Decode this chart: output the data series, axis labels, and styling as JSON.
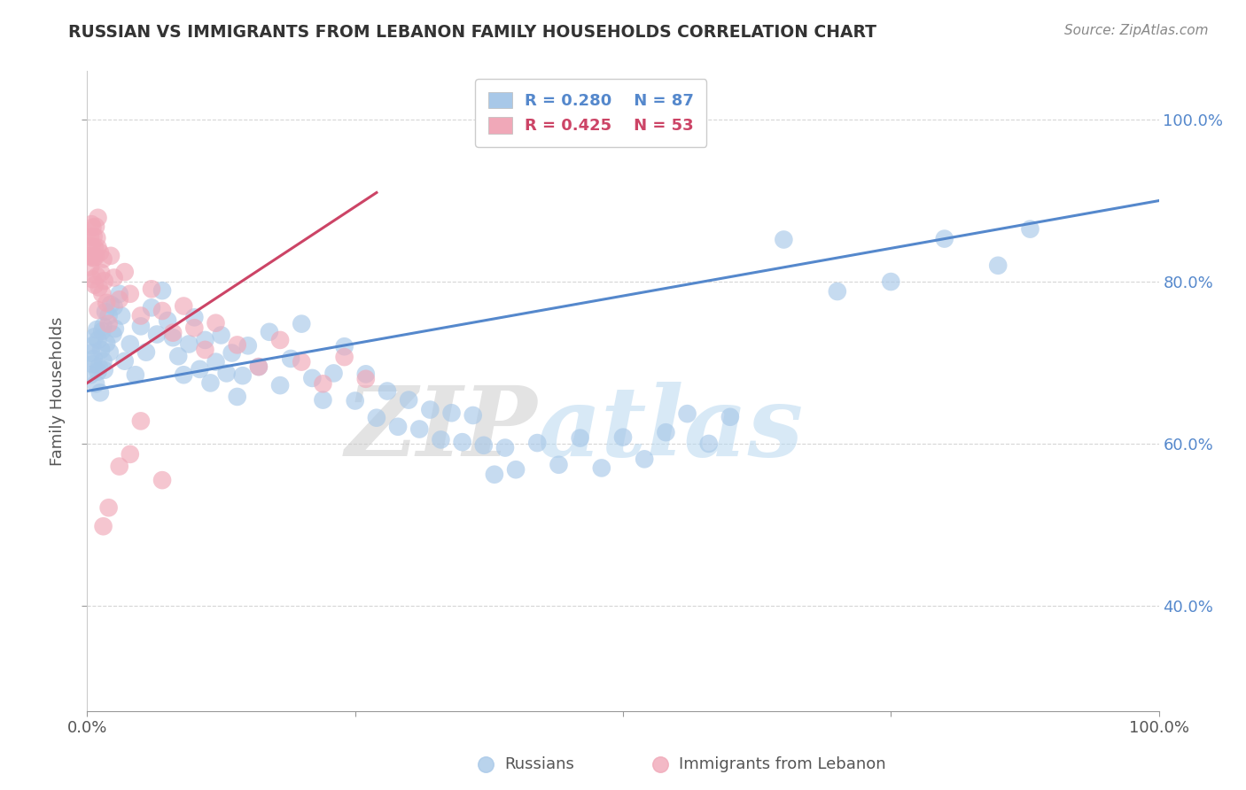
{
  "title": "RUSSIAN VS IMMIGRANTS FROM LEBANON FAMILY HOUSEHOLDS CORRELATION CHART",
  "source_text": "Source: ZipAtlas.com",
  "ylabel": "Family Households",
  "xlim": [
    0.0,
    100.0
  ],
  "ylim": [
    27.0,
    106.0
  ],
  "watermark": "ZIPatlas",
  "blue_color": "#a8c8e8",
  "pink_color": "#f0a8b8",
  "blue_line_color": "#5588cc",
  "pink_line_color": "#cc4466",
  "title_color": "#333333",
  "axis_label_color": "#555555",
  "right_tick_color": "#5588cc",
  "grid_color": "#cccccc",
  "background_color": "#ffffff",
  "blue_scatter": [
    [
      0.3,
      68.5
    ],
    [
      0.4,
      71.2
    ],
    [
      0.5,
      72.1
    ],
    [
      0.5,
      69.8
    ],
    [
      0.6,
      70.5
    ],
    [
      0.7,
      73.2
    ],
    [
      0.8,
      67.4
    ],
    [
      0.9,
      74.1
    ],
    [
      1.0,
      68.9
    ],
    [
      1.0,
      72.8
    ],
    [
      1.1,
      69.5
    ],
    [
      1.2,
      66.3
    ],
    [
      1.3,
      71.6
    ],
    [
      1.4,
      73.9
    ],
    [
      1.5,
      70.2
    ],
    [
      1.5,
      74.5
    ],
    [
      1.6,
      69.1
    ],
    [
      1.7,
      76.3
    ],
    [
      1.8,
      72.4
    ],
    [
      2.0,
      75.8
    ],
    [
      2.1,
      71.3
    ],
    [
      2.2,
      77.2
    ],
    [
      2.4,
      73.5
    ],
    [
      2.5,
      76.9
    ],
    [
      2.6,
      74.2
    ],
    [
      3.0,
      78.5
    ],
    [
      3.2,
      75.8
    ],
    [
      3.5,
      70.2
    ],
    [
      4.0,
      72.3
    ],
    [
      4.5,
      68.5
    ],
    [
      5.0,
      74.5
    ],
    [
      5.5,
      71.3
    ],
    [
      6.0,
      76.8
    ],
    [
      6.5,
      73.5
    ],
    [
      7.0,
      78.9
    ],
    [
      7.5,
      75.2
    ],
    [
      8.0,
      73.1
    ],
    [
      8.5,
      70.8
    ],
    [
      9.0,
      68.5
    ],
    [
      9.5,
      72.3
    ],
    [
      10.0,
      75.6
    ],
    [
      10.5,
      69.2
    ],
    [
      11.0,
      72.8
    ],
    [
      11.5,
      67.5
    ],
    [
      12.0,
      70.1
    ],
    [
      12.5,
      73.4
    ],
    [
      13.0,
      68.7
    ],
    [
      13.5,
      71.2
    ],
    [
      14.0,
      65.8
    ],
    [
      14.5,
      68.4
    ],
    [
      15.0,
      72.1
    ],
    [
      16.0,
      69.5
    ],
    [
      17.0,
      73.8
    ],
    [
      18.0,
      67.2
    ],
    [
      19.0,
      70.5
    ],
    [
      20.0,
      74.8
    ],
    [
      21.0,
      68.1
    ],
    [
      22.0,
      65.4
    ],
    [
      23.0,
      68.7
    ],
    [
      24.0,
      72.0
    ],
    [
      25.0,
      65.3
    ],
    [
      26.0,
      68.6
    ],
    [
      27.0,
      63.2
    ],
    [
      28.0,
      66.5
    ],
    [
      29.0,
      62.1
    ],
    [
      30.0,
      65.4
    ],
    [
      31.0,
      61.8
    ],
    [
      32.0,
      64.2
    ],
    [
      33.0,
      60.5
    ],
    [
      34.0,
      63.8
    ],
    [
      35.0,
      60.2
    ],
    [
      36.0,
      63.5
    ],
    [
      37.0,
      59.8
    ],
    [
      38.0,
      56.2
    ],
    [
      39.0,
      59.5
    ],
    [
      40.0,
      56.8
    ],
    [
      42.0,
      60.1
    ],
    [
      44.0,
      57.4
    ],
    [
      46.0,
      60.7
    ],
    [
      48.0,
      57.0
    ],
    [
      50.0,
      60.8
    ],
    [
      52.0,
      58.1
    ],
    [
      54.0,
      61.4
    ],
    [
      56.0,
      63.7
    ],
    [
      58.0,
      60.0
    ],
    [
      60.0,
      63.3
    ],
    [
      65.0,
      85.2
    ],
    [
      70.0,
      78.8
    ],
    [
      75.0,
      80.0
    ],
    [
      80.0,
      85.3
    ],
    [
      85.0,
      82.0
    ],
    [
      88.0,
      86.5
    ]
  ],
  "pink_scatter": [
    [
      0.2,
      83.2
    ],
    [
      0.3,
      85.5
    ],
    [
      0.3,
      81.8
    ],
    [
      0.4,
      87.1
    ],
    [
      0.4,
      84.4
    ],
    [
      0.5,
      86.7
    ],
    [
      0.5,
      83.0
    ],
    [
      0.5,
      80.3
    ],
    [
      0.6,
      85.6
    ],
    [
      0.6,
      82.9
    ],
    [
      0.7,
      84.2
    ],
    [
      0.7,
      79.6
    ],
    [
      0.8,
      86.8
    ],
    [
      0.8,
      83.1
    ],
    [
      0.9,
      85.4
    ],
    [
      0.9,
      80.7
    ],
    [
      1.0,
      87.9
    ],
    [
      1.0,
      84.2
    ],
    [
      1.0,
      76.5
    ],
    [
      1.1,
      79.3
    ],
    [
      1.2,
      83.6
    ],
    [
      1.3,
      81.1
    ],
    [
      1.4,
      78.5
    ],
    [
      1.5,
      82.8
    ],
    [
      1.6,
      80.1
    ],
    [
      1.8,
      77.4
    ],
    [
      2.0,
      74.8
    ],
    [
      2.2,
      83.2
    ],
    [
      2.5,
      80.5
    ],
    [
      3.0,
      77.8
    ],
    [
      3.5,
      81.2
    ],
    [
      4.0,
      78.5
    ],
    [
      5.0,
      75.8
    ],
    [
      6.0,
      79.1
    ],
    [
      7.0,
      76.4
    ],
    [
      8.0,
      73.7
    ],
    [
      9.0,
      77.0
    ],
    [
      10.0,
      74.3
    ],
    [
      11.0,
      71.6
    ],
    [
      12.0,
      74.9
    ],
    [
      14.0,
      72.2
    ],
    [
      16.0,
      69.5
    ],
    [
      18.0,
      72.8
    ],
    [
      20.0,
      70.1
    ],
    [
      22.0,
      67.4
    ],
    [
      24.0,
      70.7
    ],
    [
      26.0,
      68.0
    ],
    [
      3.0,
      57.2
    ],
    [
      5.0,
      62.8
    ],
    [
      7.0,
      55.5
    ],
    [
      2.0,
      52.1
    ],
    [
      4.0,
      58.7
    ],
    [
      1.5,
      49.8
    ]
  ],
  "blue_trend": {
    "x_start": 0,
    "x_end": 100,
    "y_start": 66.5,
    "y_end": 90.0
  },
  "pink_trend": {
    "x_start": 0,
    "x_end": 27,
    "y_start": 67.5,
    "y_end": 91.0
  },
  "yticks": [
    40,
    60,
    80,
    100
  ],
  "xticks": [
    0,
    100
  ]
}
